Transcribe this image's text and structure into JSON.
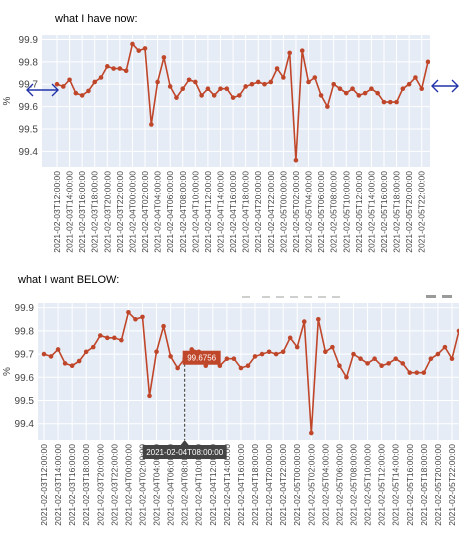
{
  "captions": {
    "top": "what I have now:",
    "bottom": "what I want BELOW:"
  },
  "ylabel": "%",
  "hover": {
    "x_label": "2021-02-04T08:00:00",
    "y_label": "99.6756"
  },
  "colors": {
    "line": "#c0462a",
    "plot_bg": "#e5ecf6",
    "grid": "#ffffff",
    "arrow": "#2233aa",
    "hover_x_bg": "#444444"
  },
  "arrow_icons": [
    "double-arrow-left-icon",
    "double-arrow-right-icon"
  ],
  "chart_data": [
    {
      "type": "line",
      "title": "",
      "xlabel": "",
      "ylabel": "%",
      "ylim": [
        99.33,
        99.92
      ],
      "yticks": [
        99.4,
        99.5,
        99.6,
        99.7,
        99.8,
        99.9
      ],
      "ytick_labels": [
        "99.4",
        "99.5",
        "99.6",
        "99.7",
        "99.8",
        "99.9"
      ],
      "xtick_labels": [
        "2021-02-03T12:00:00",
        "2021-02-03T14:00:00",
        "2021-02-03T16:00:00",
        "2021-02-03T18:00:00",
        "2021-02-03T20:00:00",
        "2021-02-03T22:00:00",
        "2021-02-04T00:00:00",
        "2021-02-04T02:00:00",
        "2021-02-04T04:00:00",
        "2021-02-04T06:00:00",
        "2021-02-04T08:00:00",
        "2021-02-04T10:00:00",
        "2021-02-04T12:00:00",
        "2021-02-04T14:00:00",
        "2021-02-04T16:00:00",
        "2021-02-04T18:00:00",
        "2021-02-04T20:00:00",
        "2021-02-04T22:00:00",
        "2021-02-05T00:00:00",
        "2021-02-05T02:00:00",
        "2021-02-05T04:00:00",
        "2021-02-05T06:00:00",
        "2021-02-05T08:00:00",
        "2021-02-05T10:00:00",
        "2021-02-05T12:00:00",
        "2021-02-05T14:00:00",
        "2021-02-05T16:00:00",
        "2021-02-05T18:00:00",
        "2021-02-05T20:00:00",
        "2021-02-05T22:00:00"
      ],
      "x_start": "2021-02-03T12:00:00",
      "x_step_hours": 1,
      "values": [
        99.7,
        99.69,
        99.72,
        99.66,
        99.65,
        99.67,
        99.71,
        99.73,
        99.78,
        99.77,
        99.77,
        99.76,
        99.88,
        99.85,
        99.86,
        99.52,
        99.71,
        99.82,
        99.69,
        99.64,
        99.68,
        99.72,
        99.71,
        99.65,
        99.68,
        99.65,
        99.68,
        99.68,
        99.64,
        99.65,
        99.69,
        99.7,
        99.71,
        99.7,
        99.71,
        99.77,
        99.73,
        99.84,
        99.36,
        99.85,
        99.71,
        99.73,
        99.65,
        99.6,
        99.7,
        99.68,
        99.66,
        99.68,
        99.65,
        99.66,
        99.68,
        99.66,
        99.62,
        99.62,
        99.62,
        99.68,
        99.7,
        99.73,
        99.68,
        99.8
      ]
    },
    {
      "type": "line",
      "title": "",
      "xlabel": "",
      "ylabel": "%",
      "ylim": [
        99.33,
        99.92
      ],
      "yticks": [
        99.4,
        99.5,
        99.6,
        99.7,
        99.8,
        99.9
      ],
      "ytick_labels": [
        "99.4",
        "99.5",
        "99.6",
        "99.7",
        "99.8",
        "99.9"
      ],
      "xtick_labels": [
        "2021-02-03T12:00:00",
        "2021-02-03T14:00:00",
        "2021-02-03T16:00:00",
        "2021-02-03T18:00:00",
        "2021-02-03T20:00:00",
        "2021-02-03T22:00:00",
        "2021-02-04T00:00:00",
        "2021-02-04T02:00:00",
        "2021-02-04T04:00:00",
        "2021-02-04T06:00:00",
        "2021-02-04T08:00:00",
        "2021-02-04T10:00:00",
        "2021-02-04T12:00:00",
        "2021-02-04T14:00:00",
        "2021-02-04T16:00:00",
        "2021-02-04T18:00:00",
        "2021-02-04T20:00:00",
        "2021-02-04T22:00:00",
        "2021-02-05T00:00:00",
        "2021-02-05T02:00:00",
        "2021-02-05T04:00:00",
        "2021-02-05T06:00:00",
        "2021-02-05T08:00:00",
        "2021-02-05T10:00:00",
        "2021-02-05T12:00:00",
        "2021-02-05T14:00:00",
        "2021-02-05T16:00:00",
        "2021-02-05T18:00:00",
        "2021-02-05T20:00:00",
        "2021-02-05T22:00:00"
      ],
      "x_start": "2021-02-03T12:00:00",
      "x_step_hours": 1,
      "hover_index": 20,
      "values": [
        99.7,
        99.69,
        99.72,
        99.66,
        99.65,
        99.67,
        99.71,
        99.73,
        99.78,
        99.77,
        99.77,
        99.76,
        99.88,
        99.85,
        99.86,
        99.52,
        99.71,
        99.82,
        99.69,
        99.64,
        99.68,
        99.72,
        99.71,
        99.65,
        99.68,
        99.65,
        99.68,
        99.68,
        99.64,
        99.65,
        99.69,
        99.7,
        99.71,
        99.7,
        99.71,
        99.77,
        99.73,
        99.84,
        99.36,
        99.85,
        99.71,
        99.73,
        99.65,
        99.6,
        99.7,
        99.68,
        99.66,
        99.68,
        99.65,
        99.66,
        99.68,
        99.66,
        99.62,
        99.62,
        99.62,
        99.68,
        99.7,
        99.73,
        99.68,
        99.8
      ]
    }
  ]
}
